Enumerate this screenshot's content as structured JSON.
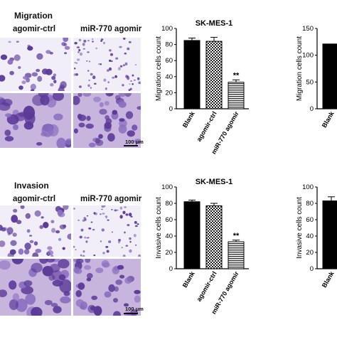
{
  "panels": [
    {
      "label": "Migration",
      "columns": [
        "agomir-ctrl",
        "miR-770 agomir"
      ],
      "scale_bar": "100 μm"
    },
    {
      "label": "Invasion",
      "columns": [
        "agomir-ctrl",
        "miR-770 agomir"
      ],
      "scale_bar": "100 μm"
    }
  ],
  "stain_colors": {
    "background_top": "#f2eef7",
    "background_dense": "#c8b5de",
    "cell": "#5b3a98",
    "cell_light": "#8a6fc0"
  },
  "chart_data": [
    {
      "type": "bar",
      "title": "SK-MES-1",
      "ylabel": "Migration cells count",
      "categories": [
        "Blank",
        "agomir-ctrl",
        "miR-770 agomir"
      ],
      "values": [
        85,
        84,
        33
      ],
      "errors": [
        3,
        5,
        3
      ],
      "bar_fills": [
        "solid",
        "checker",
        "hstripe"
      ],
      "significance": [
        "",
        "",
        "**"
      ],
      "ylim": [
        0,
        100
      ],
      "yticks": [
        0,
        20,
        40,
        60,
        80,
        100
      ]
    },
    {
      "type": "bar",
      "title": "",
      "ylabel": "Migration cells count",
      "categories": [
        "Blank"
      ],
      "values": [
        121
      ],
      "errors": [
        0
      ],
      "bar_fills": [
        "solid"
      ],
      "significance": [
        ""
      ],
      "ylim": [
        0,
        150
      ],
      "yticks": [
        0,
        50,
        100,
        150
      ]
    },
    {
      "type": "bar",
      "title": "SK-MES-1",
      "ylabel": "Invasive cells count",
      "categories": [
        "Blank",
        "agomir-ctrl",
        "miR-770 agomir"
      ],
      "values": [
        82,
        77,
        33
      ],
      "errors": [
        2,
        3,
        2
      ],
      "bar_fills": [
        "solid",
        "checker",
        "hstripe"
      ],
      "significance": [
        "",
        "",
        "**"
      ],
      "ylim": [
        0,
        100
      ],
      "yticks": [
        0,
        20,
        40,
        60,
        80,
        100
      ]
    },
    {
      "type": "bar",
      "title": "",
      "ylabel": "Invasive cells count",
      "categories": [
        "Blank"
      ],
      "values": [
        83
      ],
      "errors": [
        5
      ],
      "bar_fills": [
        "solid"
      ],
      "significance": [
        ""
      ],
      "ylim": [
        0,
        100
      ],
      "yticks": [
        0,
        20,
        40,
        60,
        80,
        100
      ]
    }
  ]
}
